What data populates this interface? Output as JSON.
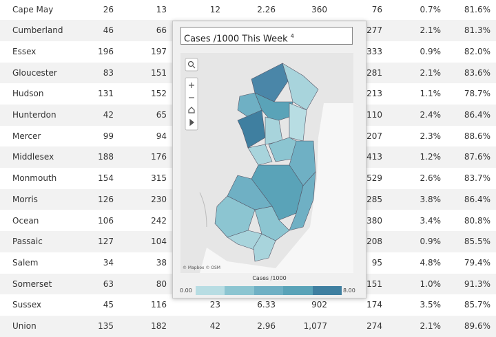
{
  "table": {
    "rows": [
      {
        "county": "Cape May",
        "cells": [
          "26",
          "13",
          "12",
          "2.26",
          "360",
          "76",
          "0.7%",
          "81.6%"
        ]
      },
      {
        "county": "Cumberland",
        "cells": [
          "46",
          "66",
          null,
          null,
          null,
          "277",
          "2.1%",
          "81.3%"
        ]
      },
      {
        "county": "Essex",
        "cells": [
          "196",
          "197",
          null,
          null,
          null,
          "333",
          "0.9%",
          "82.0%"
        ]
      },
      {
        "county": "Gloucester",
        "cells": [
          "83",
          "151",
          null,
          null,
          null,
          "281",
          "2.1%",
          "83.6%"
        ]
      },
      {
        "county": "Hudson",
        "cells": [
          "131",
          "152",
          null,
          null,
          null,
          "213",
          "1.1%",
          "78.7%"
        ]
      },
      {
        "county": "Hunterdon",
        "cells": [
          "42",
          "65",
          null,
          null,
          null,
          "110",
          "2.4%",
          "86.4%"
        ]
      },
      {
        "county": "Mercer",
        "cells": [
          "99",
          "94",
          null,
          null,
          null,
          "207",
          "2.3%",
          "88.6%"
        ]
      },
      {
        "county": "Middlesex",
        "cells": [
          "188",
          "176",
          null,
          null,
          null,
          "413",
          "1.2%",
          "87.6%"
        ]
      },
      {
        "county": "Monmouth",
        "cells": [
          "154",
          "315",
          null,
          null,
          null,
          "529",
          "2.6%",
          "83.7%"
        ]
      },
      {
        "county": "Morris",
        "cells": [
          "126",
          "230",
          null,
          null,
          null,
          "285",
          "3.8%",
          "86.4%"
        ]
      },
      {
        "county": "Ocean",
        "cells": [
          "106",
          "242",
          null,
          null,
          null,
          "380",
          "3.4%",
          "80.8%"
        ]
      },
      {
        "county": "Passaic",
        "cells": [
          "127",
          "104",
          null,
          null,
          null,
          "208",
          "0.9%",
          "85.5%"
        ]
      },
      {
        "county": "Salem",
        "cells": [
          "34",
          "38",
          null,
          null,
          null,
          "95",
          "4.8%",
          "79.4%"
        ]
      },
      {
        "county": "Somerset",
        "cells": [
          "63",
          "80",
          null,
          null,
          null,
          "151",
          "1.0%",
          "91.3%"
        ]
      },
      {
        "county": "Sussex",
        "cells": [
          "45",
          "116",
          "23",
          "6.33",
          "902",
          "174",
          "3.5%",
          "85.7%"
        ]
      },
      {
        "county": "Union",
        "cells": [
          "135",
          "182",
          "42",
          "2.96",
          "1,077",
          "274",
          "2.1%",
          "89.6%"
        ]
      }
    ]
  },
  "popup": {
    "title": "Cases /1000 This Week",
    "footnote": "4",
    "attribution": "© Mapbox © OSM",
    "legend": {
      "title": "Cases /1000",
      "min": "0.00",
      "max": "8.00"
    }
  }
}
